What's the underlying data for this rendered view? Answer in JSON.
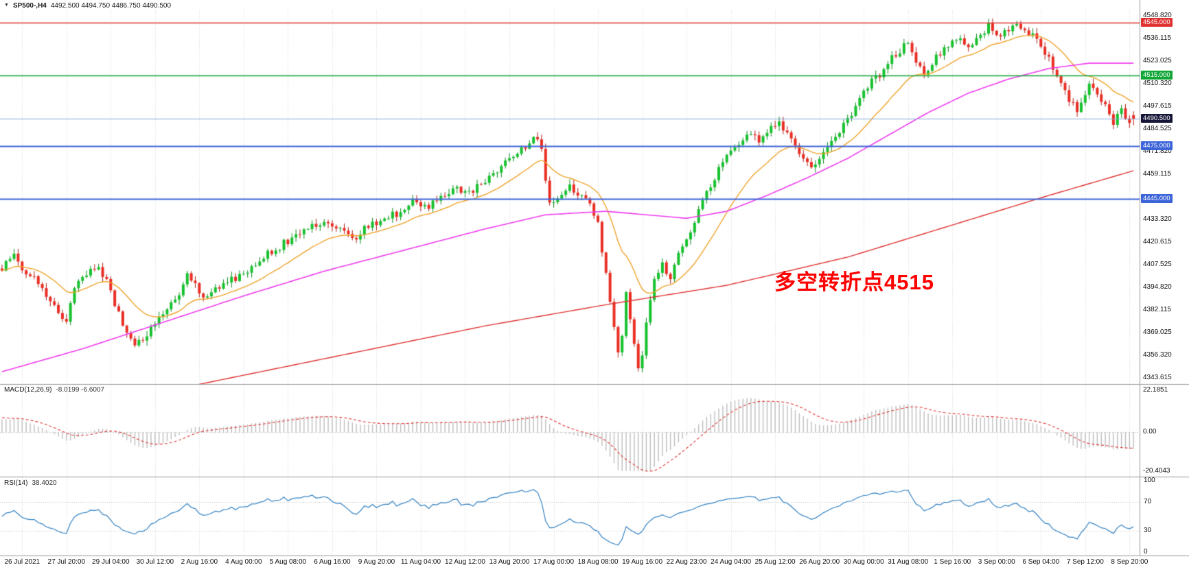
{
  "window": {
    "collapse_icon": "▼",
    "symbol_period": "SP500-,H4",
    "ohlc_text": "4492.500 4494.750 4486.750 4490.500"
  },
  "chart_data": {
    "type": "candlestick",
    "symbol": "SP500-",
    "timeframe": "H4",
    "price_axis": {
      "min": 4340,
      "max": 4552,
      "ticks": [
        "4548.820",
        "4536.115",
        "4523.025",
        "4510.320",
        "4497.615",
        "4484.525",
        "4471.820",
        "4459.115",
        "4433.320",
        "4420.615",
        "4407.525",
        "4394.820",
        "4382.115",
        "4369.025",
        "4356.320",
        "4343.615"
      ]
    },
    "hlines": [
      {
        "value": 4545.0,
        "label": "4545.000",
        "color": "#e03131",
        "width": 1.4
      },
      {
        "value": 4515.0,
        "label": "4515.000",
        "color": "#12a637",
        "width": 1.6
      },
      {
        "value": 4475.0,
        "label": "4475.000",
        "color": "#3c64d9",
        "width": 2
      },
      {
        "value": 4445.0,
        "label": "4445.000",
        "color": "#3c64d9",
        "width": 2
      }
    ],
    "current_price": {
      "value": 4490.5,
      "label": "4490.500",
      "line_color": "#86a7d9",
      "label_bg": "#151538"
    },
    "annotation": {
      "text": "多空转折点4515",
      "color": "#fe0000"
    },
    "time_axis": [
      "26 Jul 2021",
      "27 Jul 20:00",
      "29 Jul 04:00",
      "30 Jul 12:00",
      "2 Aug 16:00",
      "4 Aug 00:00",
      "5 Aug 08:00",
      "6 Aug 16:00",
      "9 Aug 20:00",
      "11 Aug 04:00",
      "12 Aug 12:00",
      "13 Aug 20:00",
      "17 Aug 00:00",
      "18 Aug 08:00",
      "19 Aug 16:00",
      "22 Aug 23:00",
      "24 Aug 04:00",
      "25 Aug 12:00",
      "26 Aug 20:00",
      "30 Aug 00:00",
      "31 Aug 08:00",
      "1 Sep 16:00",
      "3 Sep 00:00",
      "6 Sep 04:00",
      "7 Sep 12:00",
      "8 Sep 20:00"
    ],
    "candles": {
      "count": 282,
      "last_ohlc": {
        "open": 4492.5,
        "high": 4494.75,
        "low": 4486.75,
        "close": 4490.5
      },
      "close_path": [
        [
          0,
          4406
        ],
        [
          3,
          4412
        ],
        [
          6,
          4404
        ],
        [
          9,
          4398
        ],
        [
          12,
          4388
        ],
        [
          14,
          4382
        ],
        [
          16,
          4375
        ],
        [
          18,
          4394
        ],
        [
          21,
          4402
        ],
        [
          24,
          4406
        ],
        [
          26,
          4398
        ],
        [
          28,
          4384
        ],
        [
          31,
          4370
        ],
        [
          33,
          4362
        ],
        [
          36,
          4368
        ],
        [
          40,
          4380
        ],
        [
          44,
          4390
        ],
        [
          46,
          4403
        ],
        [
          48,
          4396
        ],
        [
          50,
          4388
        ],
        [
          53,
          4393
        ],
        [
          56,
          4398
        ],
        [
          58,
          4400
        ],
        [
          62,
          4406
        ],
        [
          65,
          4412
        ],
        [
          69,
          4418
        ],
        [
          73,
          4425
        ],
        [
          76,
          4429
        ],
        [
          80,
          4431
        ],
        [
          84,
          4427
        ],
        [
          88,
          4424
        ],
        [
          91,
          4430
        ],
        [
          95,
          4434
        ],
        [
          99,
          4438
        ],
        [
          102,
          4443
        ],
        [
          106,
          4441
        ],
        [
          110,
          4447
        ],
        [
          113,
          4451
        ],
        [
          117,
          4449
        ],
        [
          120,
          4456
        ],
        [
          124,
          4463
        ],
        [
          128,
          4471
        ],
        [
          131,
          4477
        ],
        [
          133,
          4479
        ],
        [
          134,
          4472
        ],
        [
          136,
          4441
        ],
        [
          138,
          4446
        ],
        [
          141,
          4453
        ],
        [
          144,
          4446
        ],
        [
          146,
          4441
        ],
        [
          148,
          4431
        ],
        [
          150,
          4402
        ],
        [
          152,
          4372
        ],
        [
          153,
          4356
        ],
        [
          154,
          4369
        ],
        [
          155,
          4391
        ],
        [
          156,
          4378
        ],
        [
          157,
          4363
        ],
        [
          158,
          4351
        ],
        [
          159,
          4357
        ],
        [
          160,
          4373
        ],
        [
          162,
          4399
        ],
        [
          164,
          4409
        ],
        [
          166,
          4399
        ],
        [
          168,
          4413
        ],
        [
          171,
          4427
        ],
        [
          174,
          4443
        ],
        [
          177,
          4456
        ],
        [
          179,
          4466
        ],
        [
          182,
          4476
        ],
        [
          185,
          4481
        ],
        [
          188,
          4478
        ],
        [
          190,
          4483
        ],
        [
          193,
          4489
        ],
        [
          196,
          4478
        ],
        [
          198,
          4470
        ],
        [
          201,
          4462
        ],
        [
          204,
          4471
        ],
        [
          207,
          4481
        ],
        [
          210,
          4489
        ],
        [
          212,
          4498
        ],
        [
          215,
          4509
        ],
        [
          218,
          4516
        ],
        [
          221,
          4526
        ],
        [
          223,
          4529
        ],
        [
          225,
          4534
        ],
        [
          227,
          4522
        ],
        [
          229,
          4516
        ],
        [
          232,
          4525
        ],
        [
          234,
          4529
        ],
        [
          237,
          4536
        ],
        [
          240,
          4531
        ],
        [
          243,
          4539
        ],
        [
          245,
          4543
        ],
        [
          248,
          4538
        ],
        [
          251,
          4543
        ],
        [
          254,
          4541
        ],
        [
          256,
          4539
        ],
        [
          259,
          4529
        ],
        [
          262,
          4513
        ],
        [
          265,
          4501
        ],
        [
          267,
          4496
        ],
        [
          270,
          4509
        ],
        [
          273,
          4501
        ],
        [
          276,
          4489
        ],
        [
          278,
          4495
        ],
        [
          280,
          4489
        ],
        [
          281,
          4490.5
        ]
      ]
    },
    "overlays": {
      "medium_path": [
        [
          0,
          4347
        ],
        [
          20,
          4360
        ],
        [
          40,
          4375
        ],
        [
          60,
          4390
        ],
        [
          80,
          4404
        ],
        [
          100,
          4416
        ],
        [
          120,
          4428
        ],
        [
          135,
          4436
        ],
        [
          150,
          4438
        ],
        [
          160,
          4436
        ],
        [
          170,
          4434
        ],
        [
          180,
          4438
        ],
        [
          190,
          4447
        ],
        [
          200,
          4457
        ],
        [
          210,
          4468
        ],
        [
          220,
          4481
        ],
        [
          230,
          4494
        ],
        [
          240,
          4505
        ],
        [
          250,
          4513
        ],
        [
          260,
          4519
        ],
        [
          270,
          4522
        ],
        [
          281,
          4522
        ]
      ],
      "slow_path": [
        [
          0,
          4316
        ],
        [
          30,
          4331
        ],
        [
          60,
          4345
        ],
        [
          90,
          4359
        ],
        [
          120,
          4373
        ],
        [
          150,
          4385
        ],
        [
          180,
          4396
        ],
        [
          210,
          4412
        ],
        [
          240,
          4433
        ],
        [
          260,
          4447
        ],
        [
          281,
          4461
        ]
      ]
    },
    "colors": {
      "up": "#17c22e",
      "up_edge": "#0b8a1d",
      "down": "#ea2e24",
      "down_edge": "#b11d16",
      "ma_fast": "#efa32a",
      "ma_medium": "#ef3bef",
      "ma_slow": "#e03131",
      "macd_hist": "#bdbdbd",
      "macd_signal": "#e03131",
      "rsi_line": "#2e7fc2"
    },
    "macd": {
      "title": "MACD(12,26,9)",
      "values_text": "-8.0199 -6.6007",
      "fast": 12,
      "slow": 26,
      "signal": 9,
      "axis": {
        "top_label": "22.1851",
        "zero_label": "0.00",
        "bottom_label": "-20.4043",
        "vmax": 22.1851,
        "vmin": -20.4043
      }
    },
    "rsi": {
      "title": "RSI(14)",
      "value_text": "38.4020",
      "period": 14,
      "axis_labels": [
        "100",
        "70",
        "30",
        "0"
      ],
      "levels": [
        70,
        30
      ]
    }
  }
}
